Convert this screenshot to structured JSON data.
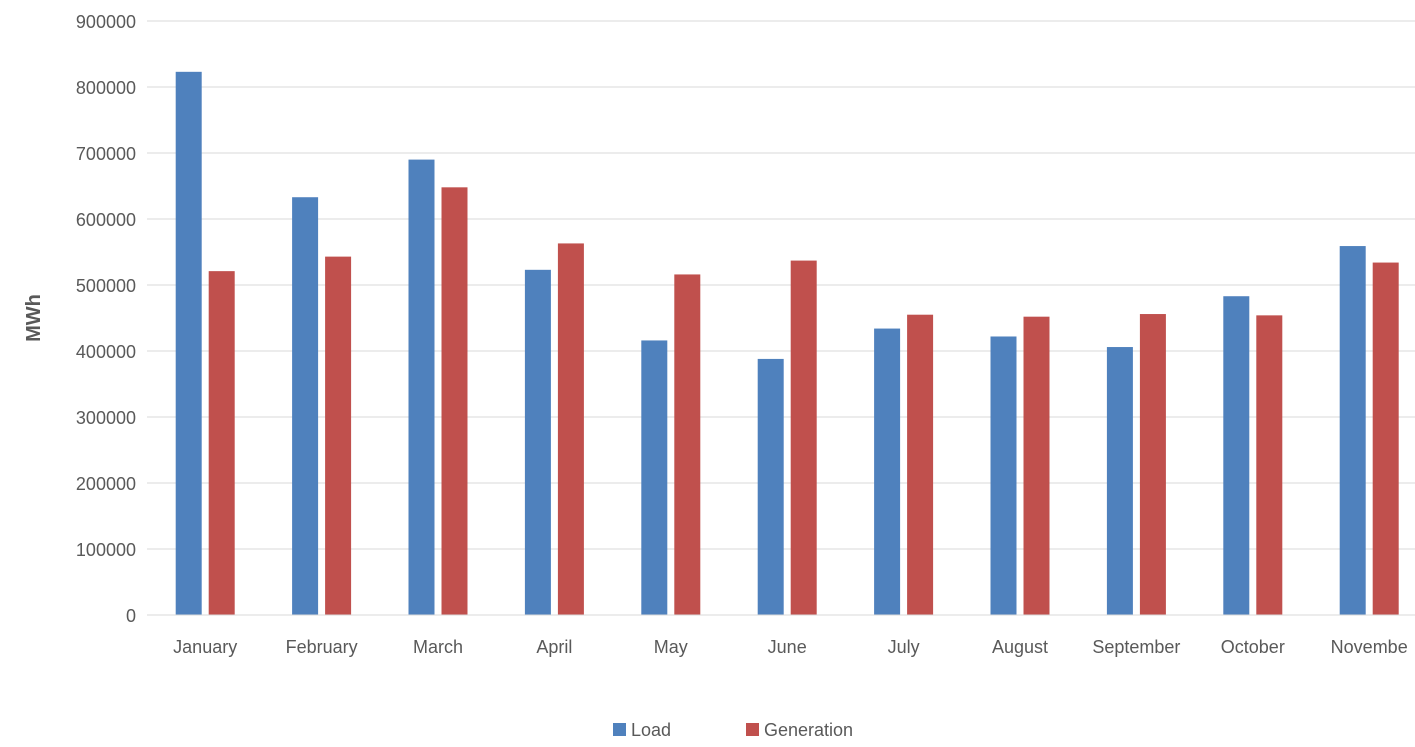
{
  "chart_data": {
    "type": "bar",
    "categories": [
      "January",
      "February",
      "March",
      "April",
      "May",
      "June",
      "July",
      "August",
      "September",
      "October",
      "Novembe"
    ],
    "series": [
      {
        "name": "Load",
        "color": "#4F81BD",
        "values": [
          823000,
          633000,
          690000,
          523000,
          416000,
          388000,
          434000,
          422000,
          406000,
          483000,
          559000
        ]
      },
      {
        "name": "Generation",
        "color": "#C0504D",
        "values": [
          521000,
          543000,
          648000,
          563000,
          516000,
          537000,
          455000,
          452000,
          456000,
          454000,
          534000
        ]
      }
    ],
    "xlabel": "",
    "ylabel": "MWh",
    "ylim": [
      0,
      900000
    ],
    "yticks": [
      "0",
      "100000",
      "200000",
      "300000",
      "400000",
      "500000",
      "600000",
      "700000",
      "800000",
      "900000"
    ],
    "grid": true,
    "legend_position": "bottom"
  }
}
